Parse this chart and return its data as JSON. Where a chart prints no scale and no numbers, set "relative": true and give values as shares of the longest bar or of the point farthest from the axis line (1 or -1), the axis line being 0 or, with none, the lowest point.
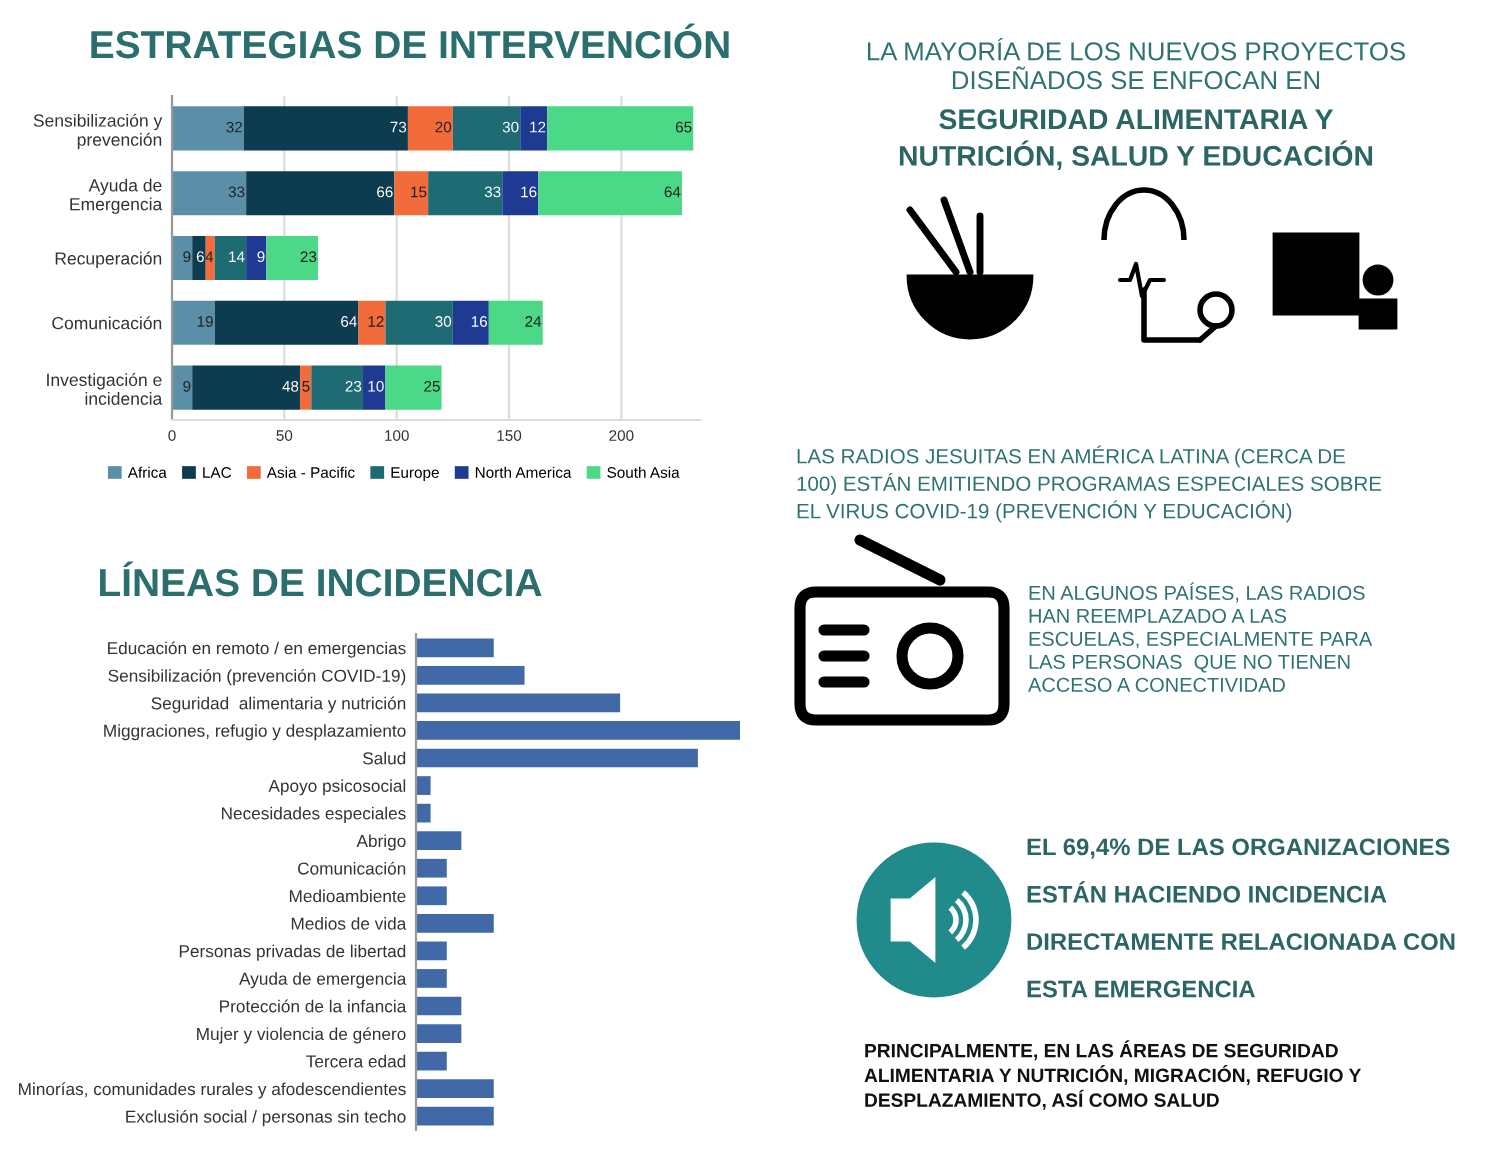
{
  "chart_data": [
    {
      "type": "bar",
      "title": "ESTRATEGIAS DE INTERVENCIÓN",
      "orientation": "horizontal",
      "stacked": true,
      "data_labels": true,
      "grid": "x",
      "legend": "bottom",
      "categories": [
        "Sensibilización y\nprevención",
        "Ayuda de\nEmergencia",
        "Recuperación",
        "Comunicación",
        "Investigación e\nincidencia"
      ],
      "series": [
        {
          "name": "Africa",
          "color": "#5b8fa8",
          "values": [
            32,
            33,
            9,
            19,
            9
          ]
        },
        {
          "name": "LAC",
          "color": "#0d3b4f",
          "values": [
            73,
            66,
            6,
            64,
            48
          ]
        },
        {
          "name": "Asia - Pacific",
          "color": "#f26b3a",
          "values": [
            20,
            15,
            4,
            12,
            5
          ]
        },
        {
          "name": "Europe",
          "color": "#1f6b73",
          "values": [
            30,
            33,
            14,
            30,
            23
          ]
        },
        {
          "name": "North America",
          "color": "#1f3a93",
          "values": [
            12,
            16,
            9,
            16,
            10
          ]
        },
        {
          "name": "South Asia",
          "color": "#4cd987",
          "values": [
            65,
            64,
            23,
            24,
            25
          ]
        }
      ],
      "xlim": [
        0,
        235
      ],
      "xticks": [
        0,
        50,
        100,
        150,
        200
      ]
    },
    {
      "type": "bar",
      "title": "LÍNEAS DE INCIDENCIA",
      "orientation": "horizontal",
      "relative": true,
      "color": "#4169a8",
      "categories": [
        "Educación en remoto / en emergencias",
        "Sensibilización (prevención COVID-19)",
        "Seguridad  alimentaria y nutrición",
        "Miggraciones, refugio y desplazamiento",
        "Salud",
        "Apoyo psicosocial",
        "Necesidades especiales",
        "Abrigo",
        "Comunicación",
        "Medioambiente",
        "Medios de vida",
        "Personas privadas de libertad",
        "Ayuda de emergencia",
        "Protección de la infancia",
        "Mujer y violencia de género",
        "Tercera edad",
        "Minorías, comunidades rurales y afodescendientes",
        "Exclusión social / personas sin techo"
      ],
      "values": [
        0.24,
        0.335,
        0.63,
        1,
        0.87,
        0.045,
        0.045,
        0.14,
        0.095,
        0.095,
        0.24,
        0.095,
        0.095,
        0.14,
        0.14,
        0.095,
        0.24,
        0.24
      ]
    },
    {
      "type": "other",
      "annotations": [
        "LA MAYORÍA DE LOS NUEVOS PROYECTOS\nDISEÑADOS SE ENFOCAN EN",
        "SEGURIDAD ALIMENTARIA Y\nNUTRICIÓN, SALUD Y EDUCACIÓN",
        "LAS RADIOS JESUITAS EN AMÉRICA LATINA (CERCA DE\n100) ESTÁN EMITIENDO PROGRAMAS ESPECIALES SOBRE\nEL VIRUS COVID-19 (PREVENCIÓN Y EDUCACIÓN)",
        "EN ALGUNOS PAÍSES, LAS RADIOS\nHAN REEMPLAZADO A LAS\nESCUELAS, ESPECIALMENTE PARA\nLAS PERSONAS  QUE NO TIENEN\nACCESO A CONECTIVIDAD",
        "EL 69,4% DE LAS ORGANIZACIONES\nESTÁN HACIENDO INCIDENCIA\nDIRECTAMENTE RELACIONADA CON\nESTA EMERGENCIA",
        "PRINCIPALMENTE, EN LAS ÁREAS DE SEGURIDAD\nALIMENTARIA Y NUTRICIÓN, MIGRACIÓN, REFUGIO Y\nDESPLAZAMIENTO, ASÍ COMO SALUD"
      ]
    }
  ]
}
